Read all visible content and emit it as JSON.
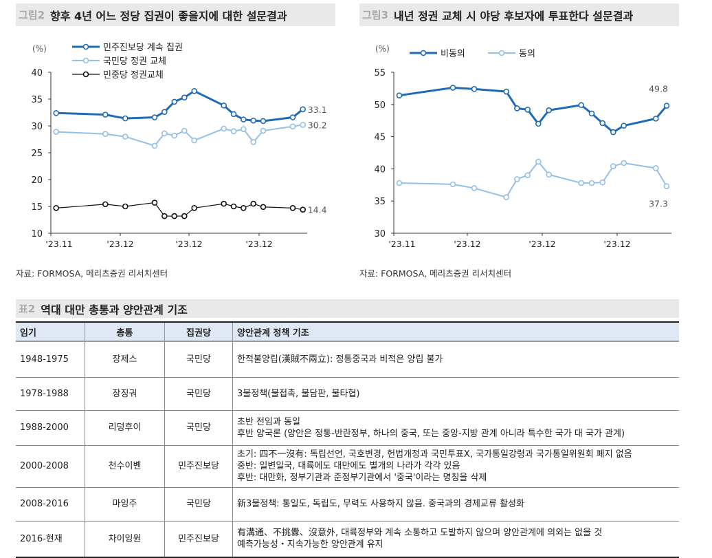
{
  "fig2": {
    "label": "그림2",
    "title": "향후 4년 어느 정당 집권이 좋을지에 대한 설문결과",
    "source": "자료: FORMOSA, 메리츠증권 리서치센터"
  },
  "fig3": {
    "label": "그림3",
    "title": "내년 정권 교체 시 야당 후보자에 투표한다 설문결과",
    "source": "자료: FORMOSA, 메리츠증권 리서치센터"
  },
  "chart_data": [
    {
      "type": "line",
      "unit_label": "(%)",
      "ylim": [
        10,
        40
      ],
      "yticks": [
        10,
        15,
        20,
        25,
        30,
        35,
        40
      ],
      "xtick_labels": [
        "'23.11",
        "'23.12",
        "'23.12",
        "'23.12"
      ],
      "grid": false,
      "legend": "top-left",
      "series": [
        {
          "name": "민주진보당 계속 집권",
          "color": "#1f6bb5",
          "values": [
            32.4,
            32.1,
            31.4,
            31.6,
            32.6,
            34.5,
            35.3,
            36.5,
            33.8,
            32.2,
            31.2,
            31.0,
            30.9,
            31.6,
            33.1
          ],
          "end_label": "33.1"
        },
        {
          "name": "국민당 정권 교체",
          "color": "#93c0e8",
          "values": [
            28.9,
            28.5,
            28.0,
            26.3,
            28.6,
            28.2,
            29.1,
            27.3,
            29.5,
            29.0,
            29.4,
            27.0,
            29.1,
            29.9,
            30.2
          ],
          "end_label": "30.2"
        },
        {
          "name": "민중당 정권교체",
          "color": "#111111",
          "values": [
            14.7,
            15.4,
            15.0,
            15.7,
            13.2,
            13.2,
            13.2,
            14.7,
            15.5,
            15.0,
            14.7,
            15.5,
            14.9,
            14.7,
            14.4
          ],
          "end_label": "14.4"
        }
      ]
    },
    {
      "type": "line",
      "unit_label": "(%)",
      "ylim": [
        30,
        55
      ],
      "yticks": [
        30,
        35,
        40,
        45,
        50,
        55
      ],
      "xtick_labels": [
        "'23.11",
        "'23.12",
        "'23.12",
        "'23.12"
      ],
      "grid": false,
      "legend": "top-left",
      "series": [
        {
          "name": "비동의",
          "color": "#1f6bb5",
          "values": [
            51.4,
            52.6,
            52.4,
            52.0,
            49.4,
            49.2,
            47.0,
            49.1,
            49.9,
            48.6,
            47.1,
            45.7,
            46.7,
            47.8,
            49.8
          ],
          "end_label": "49.8"
        },
        {
          "name": "동의",
          "color": "#93c0e8",
          "values": [
            37.8,
            37.6,
            37.0,
            35.6,
            38.4,
            39.0,
            41.1,
            39.1,
            37.8,
            37.8,
            37.9,
            40.4,
            40.9,
            40.1,
            37.3
          ],
          "end_label": "37.3"
        }
      ]
    }
  ],
  "table": {
    "label": "표2",
    "title": "역대 대만 총통과 양안관계 기조",
    "headers": [
      "임기",
      "총통",
      "집권당",
      "양안관계 정책 기조"
    ],
    "rows": [
      {
        "term": "1948-1975",
        "president": "장제스",
        "party": "국민당",
        "policy": [
          "한적불양립(漢賊不兩立): 정통중국과 비적은 양립 불가"
        ]
      },
      {
        "term": "1978-1988",
        "president": "장징궈",
        "party": "국민당",
        "policy": [
          "3불정책(불접촉, 불담판, 불타협)"
        ]
      },
      {
        "term": "1988-2000",
        "president": "리덩후이",
        "party": "국민당",
        "policy": [
          "초반 전임과 동일",
          "후반 양국론 (양안은 정통-반란정부, 하나의 중국, 또는 중앙-지방 관계 아니라 특수한 국가 대 국가 관계)"
        ]
      },
      {
        "term": "2000-2008",
        "president": "천수이볜",
        "party": "민주진보당",
        "policy": [
          "초기: 四不一沒有: 독립선언, 국호변경, 헌법개정과 국민투표X, 국가통일강령과 국가통일위원회 폐지 없음",
          "중반: 일변일국, 대륙에도 대만에도 별개의 나라가 각각 있음",
          "후반: 대만화, 정부기관과 준정부기관에서 '중국'이라는 명칭을 삭제"
        ]
      },
      {
        "term": "2008-2016",
        "president": "마잉주",
        "party": "국민당",
        "policy": [
          "新3불정책: 통일도, 독립도, 무력도 사용하지 않음. 중국과의 경제교류 활성화"
        ]
      },
      {
        "term": "2016-현재",
        "president": "차이잉원",
        "party": "민주진보당",
        "policy": [
          "有溝通、不挑釁、沒意外, 대륙정부와 계속 소통하고 도발하지 않으며 양안관계에 의외는 없을 것",
          "예측가능성・지속가능한 양안관계 유지"
        ]
      }
    ]
  }
}
